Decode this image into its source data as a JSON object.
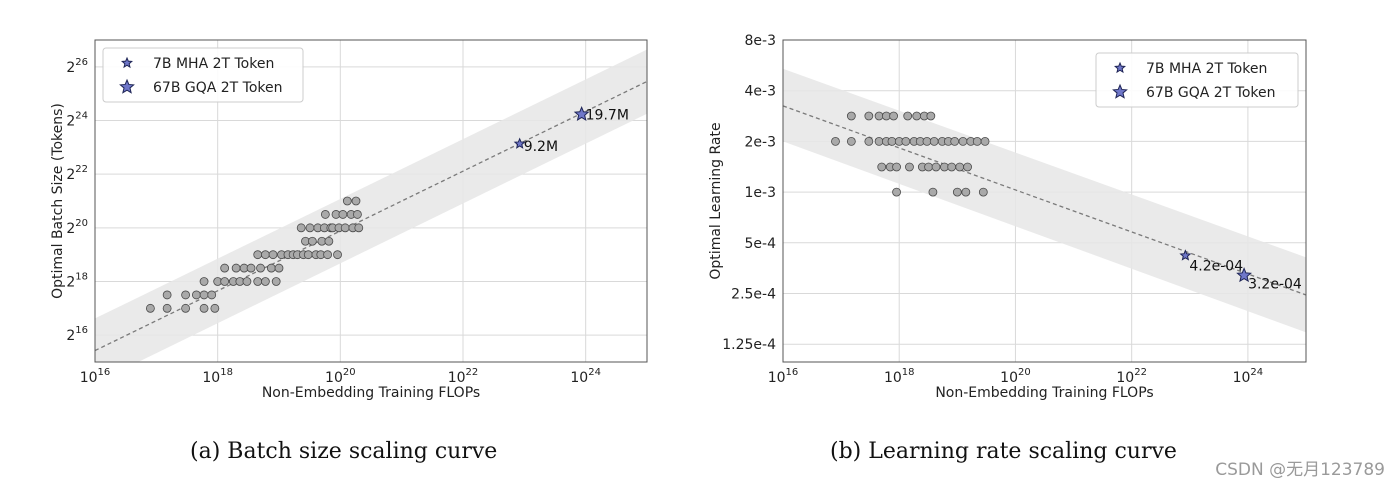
{
  "chart_data": [
    {
      "type": "scatter",
      "id": "a",
      "x_scale": "log10",
      "y_scale": "log2",
      "xlim": [
        1e+16,
        1e+25
      ],
      "ylim": [
        32768,
        134217728
      ],
      "xlabel": "Non-Embedding Training FLOPs",
      "ylabel": "Optimal Batch Size (Tokens)",
      "x_ticks": [
        {
          "value": 1e+16,
          "base": "10",
          "exp": "16"
        },
        {
          "value": 1e+18,
          "base": "10",
          "exp": "18"
        },
        {
          "value": 1e+20,
          "base": "10",
          "exp": "20"
        },
        {
          "value": 1e+22,
          "base": "10",
          "exp": "22"
        },
        {
          "value": 1e+24,
          "base": "10",
          "exp": "24"
        }
      ],
      "y_ticks": [
        {
          "value": 65536,
          "base": "2",
          "exp": "16"
        },
        {
          "value": 262144,
          "base": "2",
          "exp": "18"
        },
        {
          "value": 1048576,
          "base": "2",
          "exp": "20"
        },
        {
          "value": 4194304,
          "base": "2",
          "exp": "22"
        },
        {
          "value": 16777216,
          "base": "2",
          "exp": "24"
        },
        {
          "value": 67108864,
          "base": "2",
          "exp": "26"
        }
      ],
      "grid": true,
      "legend_position": "top-left",
      "fit_line": {
        "x": [
          1e+16,
          1e+25
        ],
        "y": [
          44000,
          46000000
        ]
      },
      "band": {
        "x": [
          1e+16,
          1e+25
        ],
        "lower": [
          19000,
          20000000
        ],
        "upper": [
          101000,
          105000000
        ]
      },
      "points": [
        {
          "x": 8e+16,
          "y": 131072
        },
        {
          "x": 1.5e+17,
          "y": 131072
        },
        {
          "x": 1.5e+17,
          "y": 185364
        },
        {
          "x": 3e+17,
          "y": 131072
        },
        {
          "x": 3e+17,
          "y": 185364
        },
        {
          "x": 4.5e+17,
          "y": 185364
        },
        {
          "x": 6e+17,
          "y": 131072
        },
        {
          "x": 6e+17,
          "y": 185364
        },
        {
          "x": 6e+17,
          "y": 262144
        },
        {
          "x": 8e+17,
          "y": 185364
        },
        {
          "x": 9e+17,
          "y": 131072
        },
        {
          "x": 1e+18,
          "y": 262144
        },
        {
          "x": 1.3e+18,
          "y": 262144
        },
        {
          "x": 1.3e+18,
          "y": 370728
        },
        {
          "x": 1.8e+18,
          "y": 262144
        },
        {
          "x": 2e+18,
          "y": 370728
        },
        {
          "x": 2.3e+18,
          "y": 262144
        },
        {
          "x": 2.7e+18,
          "y": 370728
        },
        {
          "x": 3e+18,
          "y": 262144
        },
        {
          "x": 3.5e+18,
          "y": 370728
        },
        {
          "x": 4.5e+18,
          "y": 262144
        },
        {
          "x": 4.5e+18,
          "y": 524288
        },
        {
          "x": 5e+18,
          "y": 370728
        },
        {
          "x": 6e+18,
          "y": 262144
        },
        {
          "x": 6e+18,
          "y": 524288
        },
        {
          "x": 7.5e+18,
          "y": 370728
        },
        {
          "x": 8e+18,
          "y": 524288
        },
        {
          "x": 9e+18,
          "y": 262144
        },
        {
          "x": 1e+19,
          "y": 370728
        },
        {
          "x": 1.1e+19,
          "y": 524288
        },
        {
          "x": 1.4e+19,
          "y": 524288
        },
        {
          "x": 1.7e+19,
          "y": 524288
        },
        {
          "x": 2e+19,
          "y": 524288
        },
        {
          "x": 2.3e+19,
          "y": 1048576
        },
        {
          "x": 2.5e+19,
          "y": 524288
        },
        {
          "x": 2.7e+19,
          "y": 741455
        },
        {
          "x": 3e+19,
          "y": 524288
        },
        {
          "x": 3.2e+19,
          "y": 1048576
        },
        {
          "x": 3.5e+19,
          "y": 741455
        },
        {
          "x": 4e+19,
          "y": 524288
        },
        {
          "x": 4.3e+19,
          "y": 1048576
        },
        {
          "x": 4.8e+19,
          "y": 524288
        },
        {
          "x": 5e+19,
          "y": 741455
        },
        {
          "x": 5.5e+19,
          "y": 1048576
        },
        {
          "x": 5.7e+19,
          "y": 1482910
        },
        {
          "x": 6.2e+19,
          "y": 524288
        },
        {
          "x": 6.5e+19,
          "y": 741455
        },
        {
          "x": 7e+19,
          "y": 1048576
        },
        {
          "x": 7.5e+19,
          "y": 1048576
        },
        {
          "x": 8.5e+19,
          "y": 1482910
        },
        {
          "x": 9e+19,
          "y": 524288
        },
        {
          "x": 9.5e+19,
          "y": 1048576
        },
        {
          "x": 1.1e+20,
          "y": 1482910
        },
        {
          "x": 1.2e+20,
          "y": 1048576
        },
        {
          "x": 1.3e+20,
          "y": 2097152
        },
        {
          "x": 1.5e+20,
          "y": 1482910
        },
        {
          "x": 1.6e+20,
          "y": 1048576
        },
        {
          "x": 1.8e+20,
          "y": 2097152
        },
        {
          "x": 1.9e+20,
          "y": 1482910
        },
        {
          "x": 2e+20,
          "y": 1048576
        }
      ],
      "series": [
        {
          "name": "7B MHA 2T Token",
          "marker": "star",
          "size": "small",
          "x": 8.4e+22,
          "y": 9200000,
          "label": "9.2M"
        },
        {
          "name": "67B GQA 2T Token",
          "marker": "star",
          "size": "large",
          "x": 8.6e+23,
          "y": 19700000,
          "label": "19.7M"
        }
      ],
      "caption": "(a)  Batch size scaling curve"
    },
    {
      "type": "scatter",
      "id": "b",
      "x_scale": "log10",
      "y_scale": "log2",
      "xlim": [
        1e+16,
        1e+25
      ],
      "ylim": [
        9.8e-05,
        0.008
      ],
      "xlabel": "Non-Embedding Training FLOPs",
      "ylabel": "Optimal Learning Rate",
      "x_ticks": [
        {
          "value": 1e+16,
          "base": "10",
          "exp": "16"
        },
        {
          "value": 1e+18,
          "base": "10",
          "exp": "18"
        },
        {
          "value": 1e+20,
          "base": "10",
          "exp": "20"
        },
        {
          "value": 1e+22,
          "base": "10",
          "exp": "22"
        },
        {
          "value": 1e+24,
          "base": "10",
          "exp": "24"
        }
      ],
      "y_ticks": [
        {
          "value": 0.008,
          "label": "8e-3"
        },
        {
          "value": 0.004,
          "label": "4e-3"
        },
        {
          "value": 0.002,
          "label": "2e-3"
        },
        {
          "value": 0.001,
          "label": "1e-3"
        },
        {
          "value": 0.0005,
          "label": "5e-4"
        },
        {
          "value": 0.00025,
          "label": "2.5e-4"
        },
        {
          "value": 0.000125,
          "label": "1.25e-4"
        }
      ],
      "grid": true,
      "legend_position": "top-right",
      "fit_line": {
        "x": [
          1e+16,
          1e+25
        ],
        "y": [
          0.00325,
          0.000245
        ]
      },
      "band": {
        "x": [
          1e+16,
          1e+25
        ],
        "lower": [
          0.002,
          0.000147
        ],
        "upper": [
          0.0054,
          0.00041
        ]
      },
      "points": [
        {
          "x": 8e+16,
          "y": 0.002
        },
        {
          "x": 1.5e+17,
          "y": 0.002
        },
        {
          "x": 1.5e+17,
          "y": 0.00283
        },
        {
          "x": 3e+17,
          "y": 0.002
        },
        {
          "x": 3e+17,
          "y": 0.00283
        },
        {
          "x": 4.5e+17,
          "y": 0.002
        },
        {
          "x": 4.5e+17,
          "y": 0.00283
        },
        {
          "x": 5e+17,
          "y": 0.00141
        },
        {
          "x": 6e+17,
          "y": 0.002
        },
        {
          "x": 6e+17,
          "y": 0.00283
        },
        {
          "x": 7e+17,
          "y": 0.00141
        },
        {
          "x": 7.5e+17,
          "y": 0.002
        },
        {
          "x": 8e+17,
          "y": 0.00283
        },
        {
          "x": 9e+17,
          "y": 0.001
        },
        {
          "x": 9e+17,
          "y": 0.00141
        },
        {
          "x": 1e+18,
          "y": 0.002
        },
        {
          "x": 1.3e+18,
          "y": 0.002
        },
        {
          "x": 1.4e+18,
          "y": 0.00283
        },
        {
          "x": 1.5e+18,
          "y": 0.00141
        },
        {
          "x": 1.8e+18,
          "y": 0.002
        },
        {
          "x": 2e+18,
          "y": 0.00283
        },
        {
          "x": 2.3e+18,
          "y": 0.002
        },
        {
          "x": 2.5e+18,
          "y": 0.00141
        },
        {
          "x": 2.7e+18,
          "y": 0.00283
        },
        {
          "x": 3e+18,
          "y": 0.002
        },
        {
          "x": 3.2e+18,
          "y": 0.00141
        },
        {
          "x": 3.5e+18,
          "y": 0.00283
        },
        {
          "x": 3.8e+18,
          "y": 0.001
        },
        {
          "x": 4e+18,
          "y": 0.002
        },
        {
          "x": 4.3e+18,
          "y": 0.00141
        },
        {
          "x": 5.5e+18,
          "y": 0.002
        },
        {
          "x": 6e+18,
          "y": 0.00141
        },
        {
          "x": 7e+18,
          "y": 0.002
        },
        {
          "x": 8e+18,
          "y": 0.00141
        },
        {
          "x": 9e+18,
          "y": 0.002
        },
        {
          "x": 1e+19,
          "y": 0.001
        },
        {
          "x": 1.1e+19,
          "y": 0.00141
        },
        {
          "x": 1.25e+19,
          "y": 0.002
        },
        {
          "x": 1.4e+19,
          "y": 0.001
        },
        {
          "x": 1.5e+19,
          "y": 0.00141
        },
        {
          "x": 1.7e+19,
          "y": 0.002
        },
        {
          "x": 2.2e+19,
          "y": 0.002
        },
        {
          "x": 2.8e+19,
          "y": 0.001
        },
        {
          "x": 3e+19,
          "y": 0.002
        }
      ],
      "series": [
        {
          "name": "7B MHA 2T Token",
          "marker": "star",
          "size": "small",
          "x": 8.4e+22,
          "y": 0.00042,
          "label": "4.2e-04"
        },
        {
          "name": "67B GQA 2T Token",
          "marker": "star",
          "size": "large",
          "x": 8.6e+23,
          "y": 0.00032,
          "label": "3.2e-04"
        }
      ],
      "caption": "(b)  Learning rate scaling curve"
    }
  ],
  "colors": {
    "band": "#e6e6e6",
    "grid": "#d9d9d9",
    "point_fill": "#a9a9a9",
    "point_edge": "#4a4a4a",
    "star_fill": "#6f77c9",
    "star_edge": "#1e2455",
    "fit_line": "#7a7a7a",
    "frame": "#555555"
  },
  "watermark": "CSDN @无月123789"
}
